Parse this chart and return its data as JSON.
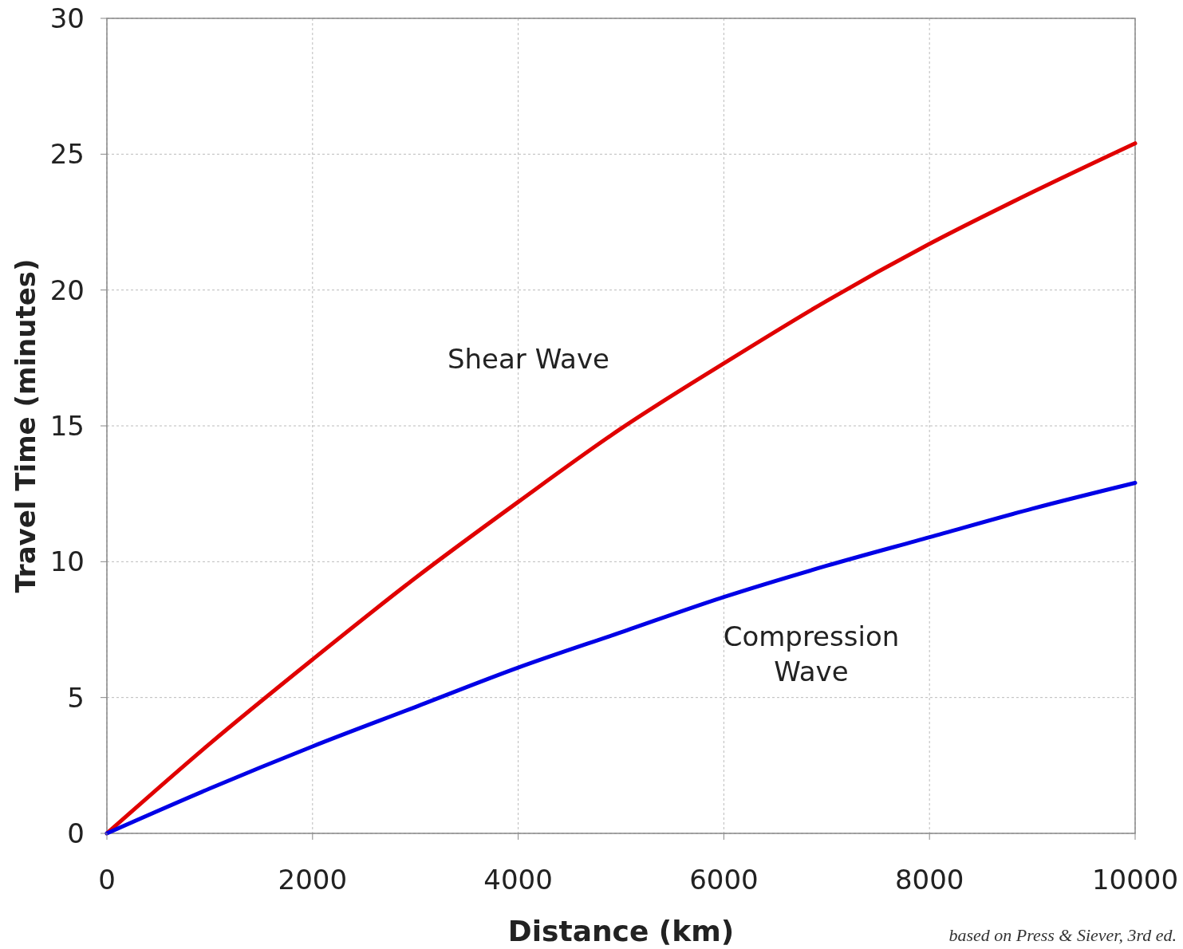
{
  "chart_data": {
    "type": "line",
    "xlabel": "Distance (km)",
    "ylabel": "Travel Time (minutes)",
    "annotations": [
      "based on Press & Siever, 3rd ed."
    ],
    "x": [
      0,
      1000,
      2000,
      3000,
      4000,
      5000,
      6000,
      7000,
      8000,
      9000,
      10000
    ],
    "series": [
      {
        "name": "Shear Wave",
        "color": "#e00000",
        "values": [
          0,
          3.3,
          6.4,
          9.4,
          12.2,
          14.9,
          17.3,
          19.6,
          21.7,
          23.6,
          25.4
        ]
      },
      {
        "name": "Compression\nWave",
        "color": "#0000e6",
        "values": [
          0,
          1.65,
          3.2,
          4.65,
          6.1,
          7.4,
          8.7,
          9.85,
          10.9,
          11.95,
          12.9
        ]
      }
    ],
    "xlim": [
      0,
      10000
    ],
    "xticks": [
      0,
      2000,
      4000,
      6000,
      8000,
      10000
    ],
    "ylim": [
      0,
      30
    ],
    "yticks": [
      0,
      5,
      10,
      15,
      20,
      25,
      30
    ],
    "grid": true,
    "marker": "none",
    "line_style": "solid"
  }
}
